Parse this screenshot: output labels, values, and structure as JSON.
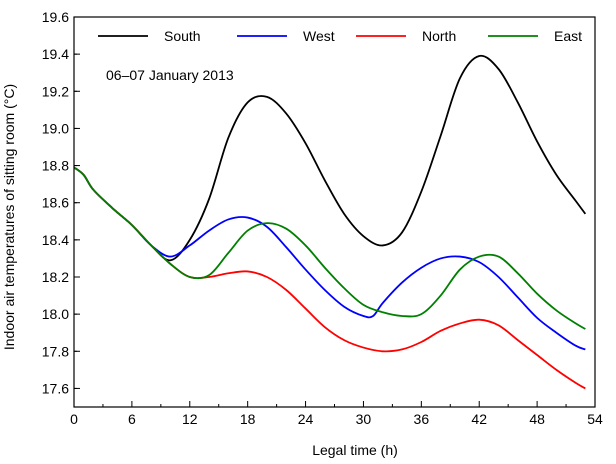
{
  "chart_data": {
    "type": "line",
    "annotation": "06–07 January 2013",
    "xlabel": "Legal time (h)",
    "ylabel": "Indoor air temperatures of sitting room (°C)",
    "xlim": [
      0,
      54
    ],
    "ylim": [
      17.5,
      19.6
    ],
    "xticks": [
      0,
      6,
      12,
      18,
      24,
      30,
      36,
      42,
      48,
      54
    ],
    "yticks": [
      17.6,
      17.8,
      18.0,
      18.2,
      18.4,
      18.6,
      18.8,
      19.0,
      19.2,
      19.4,
      19.6
    ],
    "grid": false,
    "legend_position": "top",
    "series": [
      {
        "name": "South",
        "color": "#000000",
        "points": [
          [
            0,
            18.79
          ],
          [
            1,
            18.75
          ],
          [
            2,
            18.67
          ],
          [
            4,
            18.57
          ],
          [
            6,
            18.48
          ],
          [
            8,
            18.37
          ],
          [
            10,
            18.29
          ],
          [
            12,
            18.4
          ],
          [
            14,
            18.62
          ],
          [
            16,
            18.95
          ],
          [
            18,
            19.14
          ],
          [
            20,
            19.17
          ],
          [
            22,
            19.08
          ],
          [
            24,
            18.92
          ],
          [
            26,
            18.72
          ],
          [
            28,
            18.54
          ],
          [
            30,
            18.42
          ],
          [
            32,
            18.37
          ],
          [
            34,
            18.44
          ],
          [
            36,
            18.66
          ],
          [
            38,
            18.96
          ],
          [
            40,
            19.27
          ],
          [
            42,
            19.39
          ],
          [
            44,
            19.32
          ],
          [
            46,
            19.14
          ],
          [
            48,
            18.93
          ],
          [
            50,
            18.75
          ],
          [
            52,
            18.61
          ],
          [
            53,
            18.54
          ]
        ]
      },
      {
        "name": "West",
        "color": "#0000ff",
        "points": [
          [
            0,
            18.79
          ],
          [
            1,
            18.75
          ],
          [
            2,
            18.67
          ],
          [
            4,
            18.57
          ],
          [
            6,
            18.48
          ],
          [
            8,
            18.37
          ],
          [
            10,
            18.31
          ],
          [
            12,
            18.37
          ],
          [
            14,
            18.45
          ],
          [
            16,
            18.51
          ],
          [
            18,
            18.52
          ],
          [
            20,
            18.47
          ],
          [
            22,
            18.36
          ],
          [
            24,
            18.24
          ],
          [
            26,
            18.13
          ],
          [
            28,
            18.04
          ],
          [
            30,
            17.99
          ],
          [
            31,
            17.99
          ],
          [
            32,
            18.06
          ],
          [
            34,
            18.17
          ],
          [
            36,
            18.25
          ],
          [
            38,
            18.3
          ],
          [
            40,
            18.31
          ],
          [
            42,
            18.28
          ],
          [
            44,
            18.2
          ],
          [
            46,
            18.09
          ],
          [
            48,
            17.98
          ],
          [
            50,
            17.9
          ],
          [
            52,
            17.83
          ],
          [
            53,
            17.81
          ]
        ]
      },
      {
        "name": "North",
        "color": "#ff0000",
        "points": [
          [
            0,
            18.79
          ],
          [
            1,
            18.75
          ],
          [
            2,
            18.67
          ],
          [
            4,
            18.57
          ],
          [
            6,
            18.48
          ],
          [
            8,
            18.37
          ],
          [
            10,
            18.27
          ],
          [
            12,
            18.2
          ],
          [
            14,
            18.2
          ],
          [
            16,
            18.22
          ],
          [
            18,
            18.23
          ],
          [
            20,
            18.2
          ],
          [
            22,
            18.13
          ],
          [
            24,
            18.03
          ],
          [
            26,
            17.93
          ],
          [
            28,
            17.86
          ],
          [
            30,
            17.82
          ],
          [
            32,
            17.8
          ],
          [
            34,
            17.81
          ],
          [
            36,
            17.85
          ],
          [
            38,
            17.91
          ],
          [
            40,
            17.95
          ],
          [
            42,
            17.97
          ],
          [
            44,
            17.94
          ],
          [
            46,
            17.86
          ],
          [
            48,
            17.78
          ],
          [
            50,
            17.7
          ],
          [
            52,
            17.63
          ],
          [
            53,
            17.6
          ]
        ]
      },
      {
        "name": "East",
        "color": "#008000",
        "points": [
          [
            0,
            18.79
          ],
          [
            1,
            18.75
          ],
          [
            2,
            18.67
          ],
          [
            4,
            18.57
          ],
          [
            6,
            18.48
          ],
          [
            8,
            18.37
          ],
          [
            10,
            18.27
          ],
          [
            12,
            18.2
          ],
          [
            14,
            18.21
          ],
          [
            16,
            18.33
          ],
          [
            18,
            18.45
          ],
          [
            20,
            18.49
          ],
          [
            22,
            18.46
          ],
          [
            24,
            18.37
          ],
          [
            26,
            18.25
          ],
          [
            28,
            18.14
          ],
          [
            30,
            18.05
          ],
          [
            32,
            18.01
          ],
          [
            34,
            17.99
          ],
          [
            36,
            18.0
          ],
          [
            38,
            18.1
          ],
          [
            40,
            18.24
          ],
          [
            42,
            18.31
          ],
          [
            44,
            18.31
          ],
          [
            46,
            18.22
          ],
          [
            48,
            18.11
          ],
          [
            50,
            18.02
          ],
          [
            52,
            17.95
          ],
          [
            53,
            17.92
          ]
        ]
      }
    ]
  }
}
